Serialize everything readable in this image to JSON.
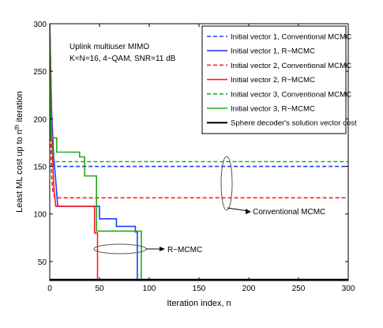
{
  "chart_data": {
    "type": "line",
    "title": "",
    "xlabel": "Iteration index, n",
    "ylabel_parts": [
      "Least ML cost up to n",
      "th",
      " iteration"
    ],
    "xlim": [
      0,
      300
    ],
    "ylim": [
      30,
      300
    ],
    "xticks": [
      0,
      50,
      100,
      150,
      200,
      250,
      300
    ],
    "yticks": [
      50,
      100,
      150,
      200,
      250,
      300
    ],
    "grid": false,
    "legend_position": "top-right",
    "annotations": {
      "system_lines": [
        "Uplink multiuser MIMO",
        "K=N=16, 4−QAM, SNR=11 dB"
      ],
      "conventional_label": "Conventional MCMC",
      "rmcmc_label": "R−MCMC"
    },
    "series": [
      {
        "name": "Initial vector 1, Conventional MCMC",
        "color": "#1f3fff",
        "dash": true,
        "points": [
          [
            0,
            300
          ],
          [
            1,
            205
          ],
          [
            2,
            175
          ],
          [
            3,
            155
          ],
          [
            5,
            150
          ],
          [
            300,
            150
          ]
        ]
      },
      {
        "name": "Initial vector 1, R−MCMC",
        "color": "#1f3fff",
        "dash": false,
        "points": [
          [
            0,
            300
          ],
          [
            2,
            205
          ],
          [
            4,
            160
          ],
          [
            6,
            135
          ],
          [
            8,
            108
          ],
          [
            50,
            108
          ],
          [
            50,
            95
          ],
          [
            67,
            95
          ],
          [
            67,
            87
          ],
          [
            86,
            87
          ],
          [
            86,
            81
          ],
          [
            88,
            81
          ],
          [
            88,
            30
          ]
        ]
      },
      {
        "name": "Initial vector 2, Conventional MCMC",
        "color": "#ff1f1f",
        "dash": true,
        "points": [
          [
            0,
            300
          ],
          [
            1,
            175
          ],
          [
            2,
            140
          ],
          [
            3,
            125
          ],
          [
            5,
            117
          ],
          [
            300,
            117
          ]
        ]
      },
      {
        "name": "Initial vector 2, R−MCMC",
        "color": "#ff1f1f",
        "dash": false,
        "points": [
          [
            0,
            300
          ],
          [
            2,
            185
          ],
          [
            4,
            130
          ],
          [
            6,
            108
          ],
          [
            45,
            108
          ],
          [
            45,
            80
          ],
          [
            48,
            80
          ],
          [
            48,
            30
          ]
        ]
      },
      {
        "name": "Initial vector 3, Conventional MCMC",
        "color": "#22aa22",
        "dash": true,
        "points": [
          [
            0,
            300
          ],
          [
            1,
            200
          ],
          [
            2,
            175
          ],
          [
            3,
            162
          ],
          [
            5,
            155
          ],
          [
            300,
            155
          ]
        ]
      },
      {
        "name": "Initial vector 3, R−MCMC",
        "color": "#22aa22",
        "dash": false,
        "points": [
          [
            0,
            300
          ],
          [
            1,
            180
          ],
          [
            7,
            180
          ],
          [
            7,
            165
          ],
          [
            30,
            165
          ],
          [
            30,
            160
          ],
          [
            35,
            160
          ],
          [
            35,
            140
          ],
          [
            47,
            140
          ],
          [
            47,
            82
          ],
          [
            92,
            82
          ],
          [
            92,
            30
          ]
        ]
      },
      {
        "name": "Sphere decoder's solution vector cost",
        "color": "#000000",
        "dash": false,
        "width": 2,
        "points": [
          [
            0,
            31
          ],
          [
            300,
            31
          ]
        ]
      }
    ]
  }
}
